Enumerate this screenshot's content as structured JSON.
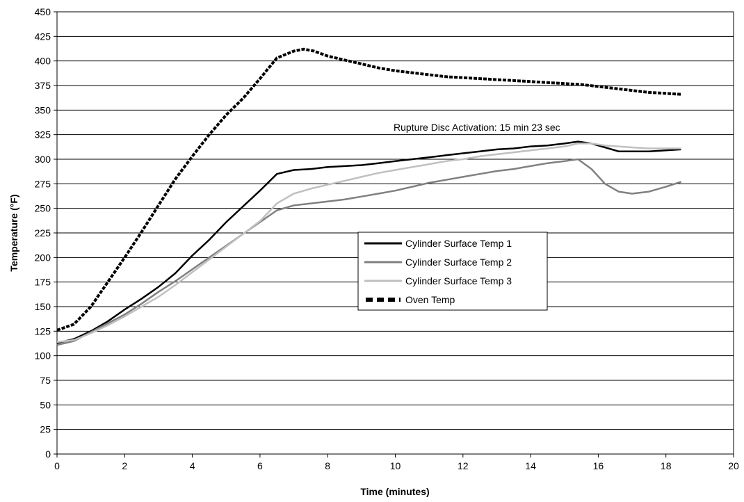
{
  "chart_data": {
    "type": "line",
    "xlabel": "Time (minutes)",
    "ylabel": "Temperature (°F)",
    "xlim": [
      0,
      20
    ],
    "ylim": [
      0,
      450
    ],
    "xticks": [
      0,
      2,
      4,
      6,
      8,
      10,
      12,
      14,
      16,
      18,
      20
    ],
    "yticks": [
      0,
      25,
      50,
      75,
      100,
      125,
      150,
      175,
      200,
      225,
      250,
      275,
      300,
      325,
      350,
      375,
      400,
      425,
      450
    ],
    "grid": "horizontal",
    "legend": "center-right",
    "annotation": {
      "text": "Rupture Disc Activation: 15 min 23 sec",
      "x": 15.38,
      "y": 320
    },
    "series": [
      {
        "name": "Cylinder Surface Temp 1",
        "color": "#000000",
        "style": "solid",
        "x": [
          0,
          0.5,
          1,
          1.5,
          2,
          2.5,
          3,
          3.5,
          4,
          4.5,
          5,
          5.5,
          6,
          6.5,
          7,
          7.5,
          8,
          8.5,
          9,
          9.5,
          10,
          10.5,
          11,
          11.5,
          12,
          12.5,
          13,
          13.5,
          14,
          14.5,
          15,
          15.4,
          15.8,
          16.2,
          16.6,
          17,
          17.5,
          18,
          18.45
        ],
        "y": [
          113,
          117,
          125,
          135,
          147,
          158,
          170,
          184,
          202,
          218,
          236,
          252,
          268,
          285,
          289,
          290,
          292,
          293,
          294,
          296,
          298,
          300,
          302,
          304,
          306,
          308,
          310,
          311,
          313,
          314,
          316,
          318,
          316,
          312,
          308,
          308,
          308,
          309,
          310
        ]
      },
      {
        "name": "Cylinder Surface Temp 2",
        "color": "#808080",
        "style": "solid",
        "x": [
          0,
          0.5,
          1,
          1.5,
          2,
          2.5,
          3,
          3.5,
          4,
          4.5,
          5,
          5.5,
          6,
          6.5,
          7,
          7.5,
          8,
          8.5,
          9,
          9.5,
          10,
          10.5,
          11,
          11.5,
          12,
          12.5,
          13,
          13.5,
          14,
          14.5,
          15,
          15.4,
          15.8,
          16.2,
          16.6,
          17,
          17.5,
          18,
          18.45
        ],
        "y": [
          111,
          115,
          124,
          133,
          142,
          153,
          165,
          176,
          188,
          200,
          212,
          224,
          236,
          248,
          253,
          255,
          257,
          259,
          262,
          265,
          268,
          272,
          276,
          279,
          282,
          285,
          288,
          290,
          293,
          296,
          298,
          300,
          290,
          275,
          267,
          265,
          267,
          272,
          277
        ]
      },
      {
        "name": "Cylinder Surface Temp 3",
        "color": "#c0c0c0",
        "style": "solid",
        "x": [
          0,
          0.5,
          1,
          1.5,
          2,
          2.5,
          3,
          3.5,
          4,
          4.5,
          5,
          5.5,
          6,
          6.5,
          7,
          7.5,
          8,
          8.5,
          9,
          9.5,
          10,
          10.5,
          11,
          11.5,
          12,
          12.5,
          13,
          13.5,
          14,
          14.5,
          15,
          15.4,
          15.8,
          16.2,
          16.6,
          17,
          17.5,
          18,
          18.45
        ],
        "y": [
          114,
          116,
          123,
          131,
          140,
          150,
          160,
          172,
          185,
          198,
          211,
          224,
          237,
          255,
          265,
          270,
          274,
          278,
          282,
          286,
          289,
          292,
          295,
          298,
          300,
          303,
          305,
          307,
          309,
          311,
          313,
          316,
          316,
          314,
          313,
          312,
          311,
          311,
          311
        ]
      },
      {
        "name": "Oven Temp",
        "color": "#000000",
        "style": "dashed",
        "x": [
          0,
          0.5,
          1,
          1.5,
          2,
          2.5,
          3,
          3.5,
          4,
          4.5,
          5,
          5.5,
          6,
          6.5,
          7,
          7.3,
          7.6,
          8,
          8.5,
          9,
          9.5,
          10,
          10.5,
          11,
          11.5,
          12,
          12.5,
          13,
          13.5,
          14,
          14.5,
          15,
          15.5,
          16,
          16.5,
          17,
          17.5,
          18,
          18.45
        ],
        "y": [
          126,
          132,
          150,
          175,
          200,
          226,
          253,
          280,
          303,
          325,
          345,
          362,
          382,
          403,
          410,
          412,
          410,
          405,
          401,
          397,
          393,
          390,
          388,
          386,
          384,
          383,
          382,
          381,
          380,
          379,
          378,
          377,
          376,
          374,
          372,
          370,
          368,
          367,
          366
        ]
      }
    ]
  }
}
